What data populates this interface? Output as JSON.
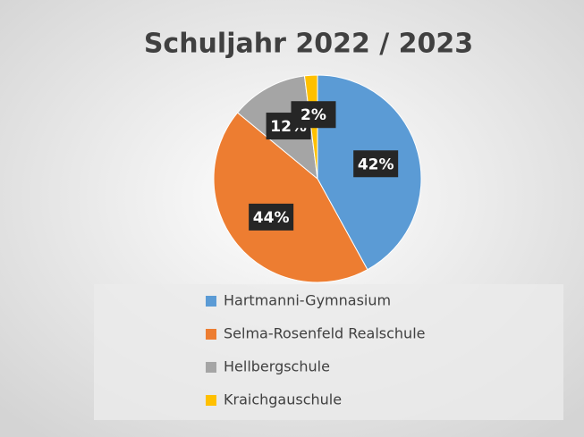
{
  "chart_data": {
    "type": "pie",
    "title": "Schuljahr 2022 / 2023",
    "categories": [
      "Hartmanni-Gymnasium",
      "Selma-Rosenfeld Realschule",
      "Hellbergschule",
      "Kraichgauschule"
    ],
    "values": [
      42,
      44,
      12,
      2
    ],
    "value_labels": [
      "42%",
      "44%",
      "12%",
      "2%"
    ],
    "colors": [
      "#5b9bd5",
      "#ed7d31",
      "#a5a5a5",
      "#ffc000"
    ],
    "legend": "bottom"
  }
}
